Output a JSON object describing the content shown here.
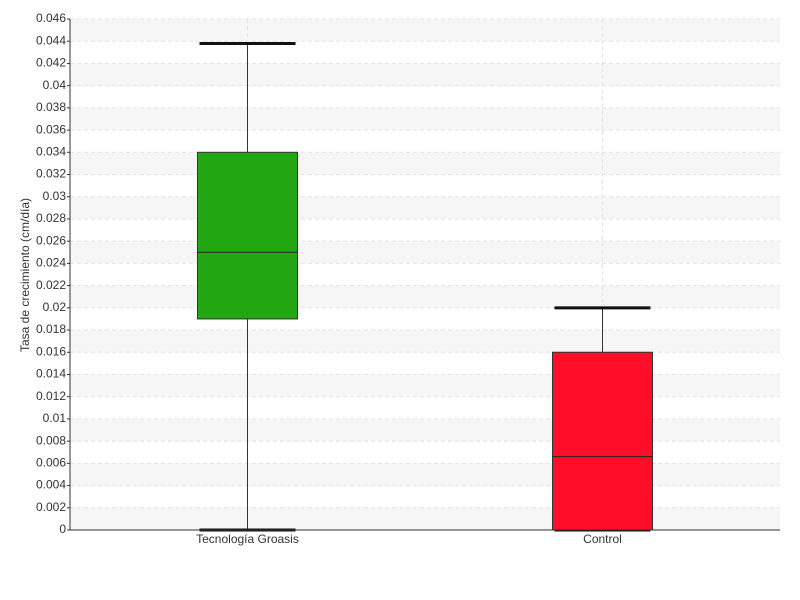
{
  "chart_data": {
    "type": "box",
    "y_label": "Tasa de crecimiento (cm/día)",
    "categories": [
      "Tecnología Groasis",
      "Control"
    ],
    "colors": [
      "#22a611",
      "#ff0d29"
    ],
    "min": [
      0,
      0
    ],
    "q1": [
      0.019,
      0
    ],
    "median": [
      0.025,
      0.0066
    ],
    "q3": [
      0.034,
      0.016
    ],
    "max": [
      0.0438,
      0.02
    ],
    "ylim": [
      0,
      0.046
    ],
    "yticks": [
      0,
      0.002,
      0.004,
      0.006,
      0.008,
      0.01,
      0.012,
      0.014,
      0.016,
      0.018,
      0.02,
      0.022,
      0.024,
      0.026,
      0.028,
      0.03,
      0.032,
      0.034,
      0.036,
      0.038,
      0.04,
      0.042,
      0.044,
      0.046
    ],
    "grid": true
  }
}
